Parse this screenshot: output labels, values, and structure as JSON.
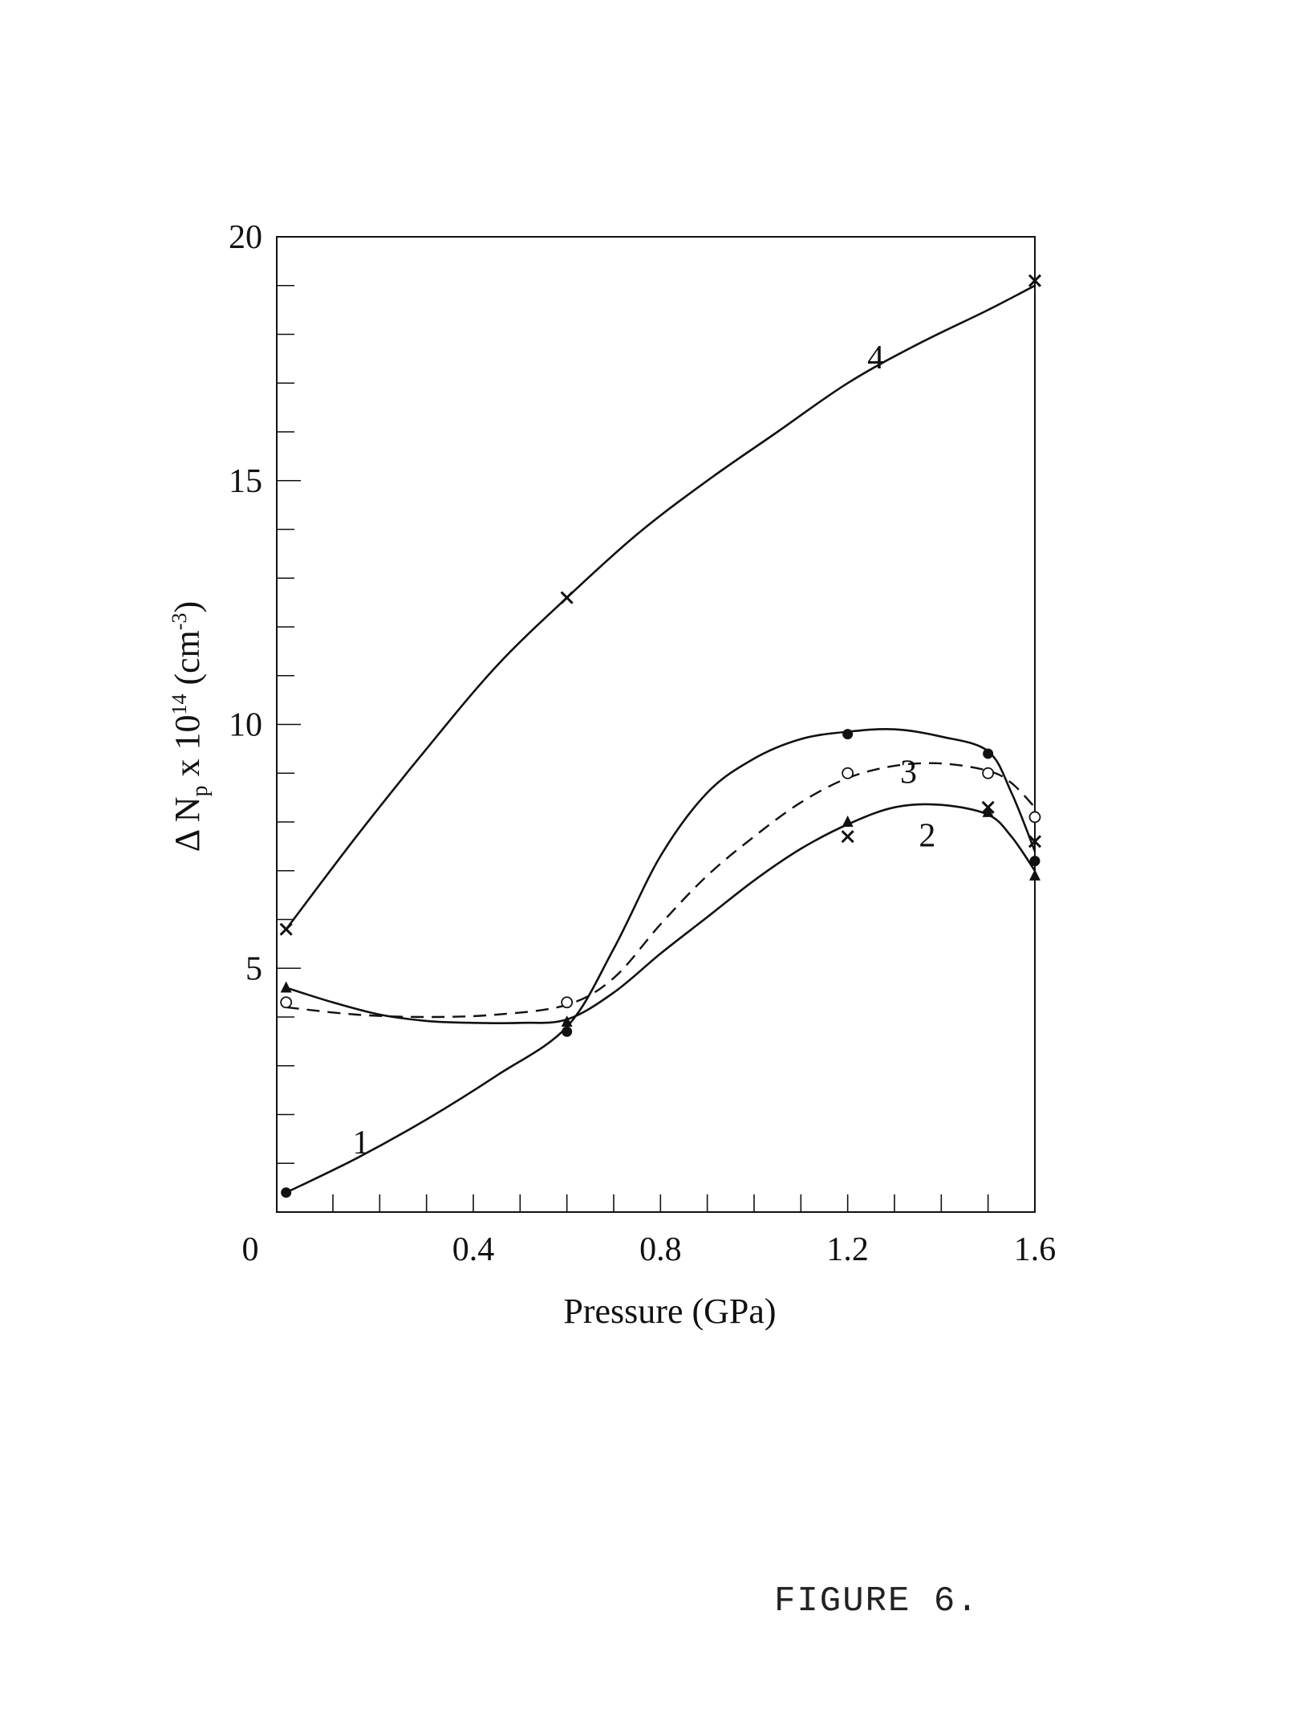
{
  "caption": "FIGURE 6.",
  "chart_data": {
    "type": "line",
    "xlabel": "Pressure (GPa)",
    "ylabel": "Δ N_p x 10^14 (cm^-3)",
    "ylabel_parts": {
      "delta": "Δ N",
      "sub": "p",
      "mid": " x 10",
      "sup1": "14",
      "unit_open": " (cm",
      "sup2": "-3",
      "unit_close": ")"
    },
    "xlim": [
      0,
      1.6
    ],
    "ylim": [
      0,
      20
    ],
    "x_ticks": [
      0,
      0.4,
      0.8,
      1.2,
      1.6
    ],
    "x_tick_labels": [
      "0",
      "0.4",
      "0.8",
      "1.2",
      "1.6"
    ],
    "y_ticks": [
      5,
      10,
      15,
      20
    ],
    "y_tick_labels": [
      "5",
      "10",
      "15",
      "20"
    ],
    "grid": false,
    "series": [
      {
        "name": "1",
        "marker": "filled-circle",
        "dashed": false,
        "x": [
          0,
          0.6,
          1.2,
          1.5,
          1.6
        ],
        "y": [
          0.4,
          3.7,
          9.8,
          9.4,
          7.2
        ],
        "curve": [
          [
            0,
            0.4
          ],
          [
            0.15,
            1.1
          ],
          [
            0.3,
            1.9
          ],
          [
            0.45,
            2.8
          ],
          [
            0.6,
            3.8
          ],
          [
            0.7,
            5.4
          ],
          [
            0.8,
            7.3
          ],
          [
            0.9,
            8.6
          ],
          [
            1.0,
            9.3
          ],
          [
            1.1,
            9.7
          ],
          [
            1.2,
            9.85
          ],
          [
            1.3,
            9.9
          ],
          [
            1.4,
            9.75
          ],
          [
            1.5,
            9.45
          ],
          [
            1.55,
            8.6
          ],
          [
            1.6,
            7.4
          ]
        ],
        "label_at": [
          0.16,
          1.2
        ]
      },
      {
        "name": "2",
        "marker": "filled-triangle",
        "dashed": false,
        "x": [
          0,
          0.6,
          1.2,
          1.5,
          1.6
        ],
        "y": [
          4.6,
          3.9,
          8.0,
          8.2,
          6.9
        ],
        "curve": [
          [
            0,
            4.6
          ],
          [
            0.1,
            4.3
          ],
          [
            0.2,
            4.05
          ],
          [
            0.3,
            3.92
          ],
          [
            0.4,
            3.88
          ],
          [
            0.5,
            3.88
          ],
          [
            0.6,
            3.95
          ],
          [
            0.7,
            4.5
          ],
          [
            0.8,
            5.3
          ],
          [
            0.9,
            6.05
          ],
          [
            1.0,
            6.8
          ],
          [
            1.1,
            7.45
          ],
          [
            1.2,
            7.95
          ],
          [
            1.3,
            8.3
          ],
          [
            1.4,
            8.35
          ],
          [
            1.5,
            8.15
          ],
          [
            1.55,
            7.7
          ],
          [
            1.6,
            7.0
          ]
        ],
        "label_at": [
          1.37,
          7.5
        ]
      },
      {
        "name": "3",
        "marker": "open-circle",
        "dashed": true,
        "x": [
          0,
          0.6,
          1.2,
          1.5,
          1.6
        ],
        "y": [
          4.3,
          4.3,
          9.0,
          9.0,
          8.1
        ],
        "curve": [
          [
            0,
            4.2
          ],
          [
            0.15,
            4.05
          ],
          [
            0.3,
            4.0
          ],
          [
            0.45,
            4.05
          ],
          [
            0.6,
            4.25
          ],
          [
            0.7,
            4.8
          ],
          [
            0.8,
            5.9
          ],
          [
            0.9,
            6.9
          ],
          [
            1.0,
            7.7
          ],
          [
            1.1,
            8.4
          ],
          [
            1.2,
            8.9
          ],
          [
            1.3,
            9.15
          ],
          [
            1.4,
            9.2
          ],
          [
            1.5,
            9.05
          ],
          [
            1.55,
            8.8
          ],
          [
            1.6,
            8.3
          ]
        ],
        "label_at": [
          1.33,
          8.8
        ]
      },
      {
        "name": "4",
        "marker": "cross",
        "dashed": false,
        "x": [
          0,
          0.6,
          1.2,
          1.5,
          1.6
        ],
        "y": [
          5.8,
          12.6,
          7.7,
          8.3,
          7.6
        ],
        "curve": [
          [
            0,
            5.8
          ],
          [
            0.15,
            7.7
          ],
          [
            0.3,
            9.5
          ],
          [
            0.45,
            11.2
          ],
          [
            0.6,
            12.6
          ],
          [
            0.75,
            13.9
          ],
          [
            0.9,
            15.0
          ],
          [
            1.05,
            16.0
          ],
          [
            1.2,
            17.0
          ],
          [
            1.35,
            17.8
          ],
          [
            1.5,
            18.5
          ],
          [
            1.6,
            19.0
          ]
        ],
        "extra_points": [
          [
            1.6,
            19.1
          ]
        ],
        "label_at": [
          1.26,
          17.3
        ]
      }
    ]
  }
}
